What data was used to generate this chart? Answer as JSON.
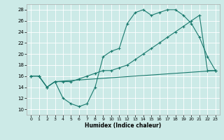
{
  "xlabel": "Humidex (Indice chaleur)",
  "xlim": [
    -0.5,
    23.5
  ],
  "ylim": [
    9,
    29
  ],
  "yticks": [
    10,
    12,
    14,
    16,
    18,
    20,
    22,
    24,
    26,
    28
  ],
  "xticks": [
    0,
    1,
    2,
    3,
    4,
    5,
    6,
    7,
    8,
    9,
    10,
    11,
    12,
    13,
    14,
    15,
    16,
    17,
    18,
    19,
    20,
    21,
    22,
    23
  ],
  "background_color": "#cceae7",
  "grid_color": "#ffffff",
  "line_color": "#1a7a6e",
  "lines": [
    {
      "x": [
        0,
        1,
        2,
        3,
        4,
        5,
        6,
        7,
        8,
        9,
        10,
        11,
        12,
        13,
        14,
        15,
        16,
        17,
        18,
        19,
        20,
        21,
        22,
        23
      ],
      "y": [
        16,
        16,
        14,
        15,
        12,
        11,
        10.5,
        11,
        14,
        19.5,
        20.5,
        21,
        25.5,
        27.5,
        28,
        27,
        27.5,
        28,
        28,
        27,
        25.5,
        23,
        19.5,
        17
      ]
    },
    {
      "x": [
        0,
        1,
        2,
        3,
        4,
        5,
        6,
        7,
        8,
        9,
        10,
        11,
        12,
        13,
        14,
        15,
        16,
        17,
        18,
        19,
        20,
        21,
        22,
        23
      ],
      "y": [
        16,
        16,
        14,
        15,
        15,
        15,
        15.5,
        16,
        16.5,
        17,
        17,
        17.5,
        18,
        19,
        20,
        21,
        22,
        23,
        24,
        25,
        26,
        27,
        17,
        17
      ]
    },
    {
      "x": [
        0,
        1,
        2,
        3,
        23
      ],
      "y": [
        16,
        16,
        14,
        15,
        17
      ]
    }
  ]
}
